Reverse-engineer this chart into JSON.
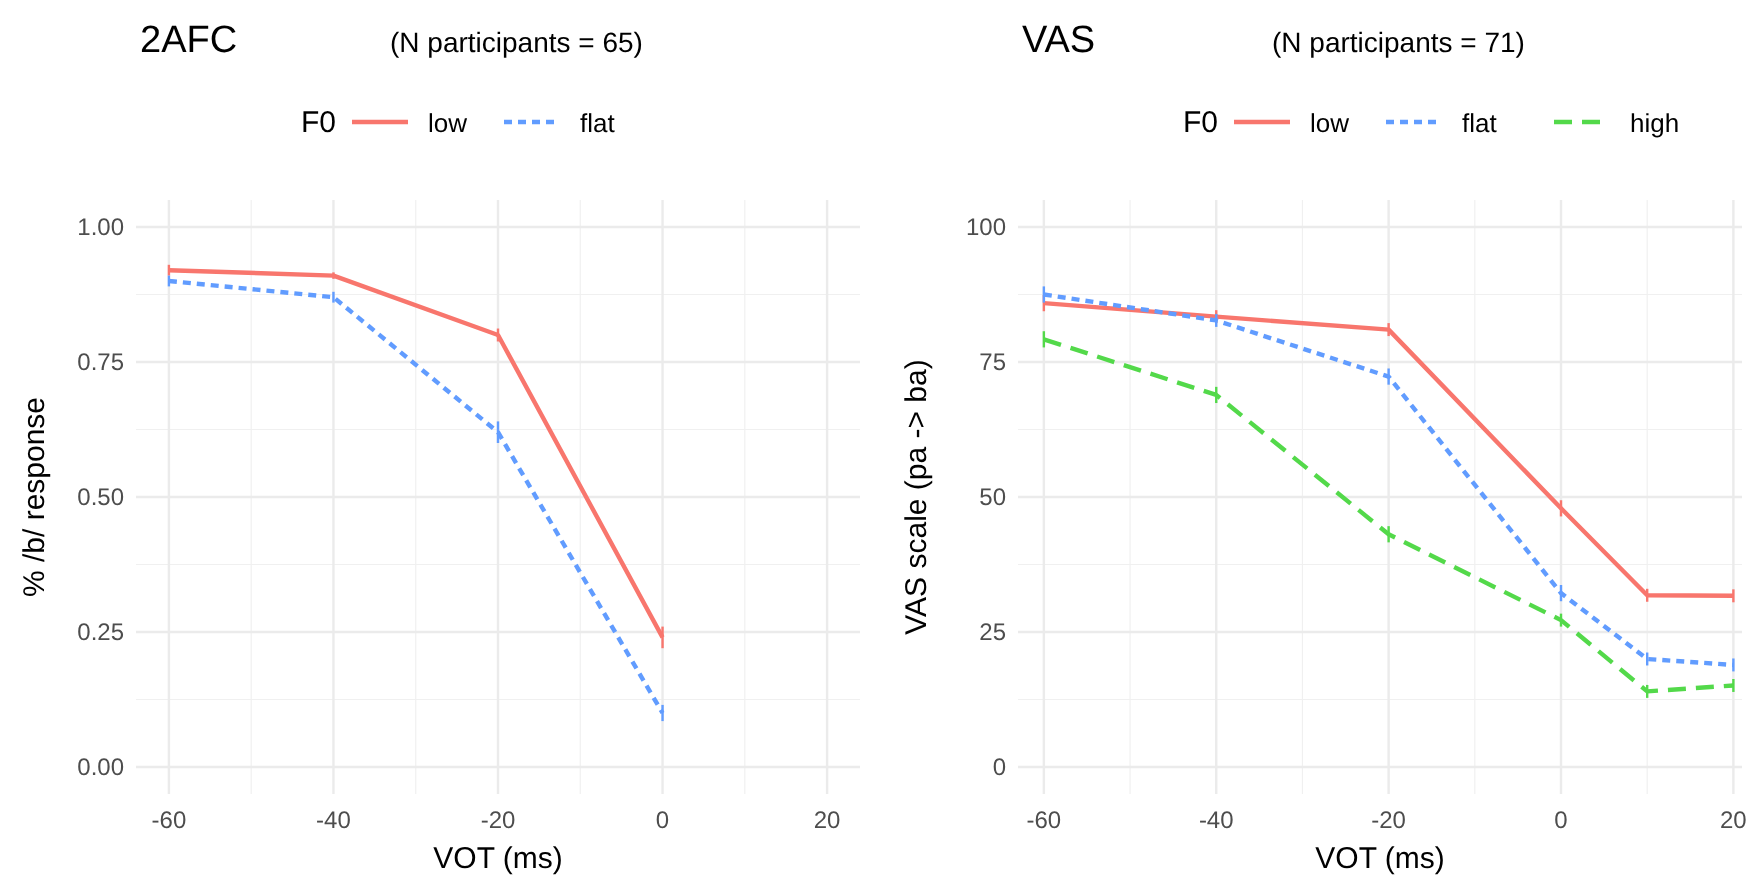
{
  "chart_data": [
    {
      "type": "line",
      "title": "2AFC",
      "subtitle": "(N participants = 65)",
      "xlabel": "VOT (ms)",
      "ylabel": "% /b/ response",
      "legend_title": "F0",
      "legend": "top",
      "grid": true,
      "marker": "none",
      "xlim": [
        -64,
        24
      ],
      "xticks": [
        -60,
        -40,
        -20,
        0,
        20
      ],
      "ylim": [
        -0.05,
        1.05
      ],
      "yticks": [
        {
          "value": 0,
          "label": "0.00"
        },
        {
          "value": 0.25,
          "label": "0.25"
        },
        {
          "value": 0.5,
          "label": "0.50"
        },
        {
          "value": 0.75,
          "label": "0.75"
        },
        {
          "value": 1,
          "label": "1.00"
        }
      ],
      "x": [
        -60,
        -40,
        -20,
        0
      ],
      "series": [
        {
          "name": "low",
          "color": "#f8766d",
          "line_style": "solid",
          "values": [
            0.92,
            0.91,
            0.8,
            0.24
          ],
          "errors": [
            0.01,
            0.006,
            0.012,
            0.02
          ]
        },
        {
          "name": "flat",
          "color": "#619cff",
          "line_style": "dotted",
          "values": [
            0.9,
            0.87,
            0.62,
            0.1
          ],
          "errors": [
            0.01,
            0.01,
            0.02,
            0.015
          ]
        }
      ]
    },
    {
      "type": "line",
      "title": "VAS",
      "subtitle": "(N participants = 71)",
      "xlabel": "VOT (ms)",
      "ylabel": "VAS scale (pa -> ba)",
      "legend_title": "F0",
      "legend": "top",
      "grid": true,
      "marker": "none",
      "xlim": [
        -63,
        21
      ],
      "xticks": [
        -60,
        -40,
        -20,
        0,
        20
      ],
      "ylim": [
        -5,
        105
      ],
      "yticks": [
        0,
        25,
        50,
        75,
        100
      ],
      "x": [
        -60,
        -40,
        -20,
        0,
        10,
        20
      ],
      "series": [
        {
          "name": "low",
          "color": "#f8766d",
          "line_style": "solid",
          "values": [
            85.9,
            83.4,
            81.0,
            47.9,
            31.8,
            31.7
          ],
          "errors": [
            1.5,
            1.2,
            1.2,
            1.5,
            1.2,
            1.2
          ]
        },
        {
          "name": "flat",
          "color": "#619cff",
          "line_style": "dotted",
          "values": [
            87.5,
            82.7,
            72.3,
            32.2,
            20.0,
            18.9
          ],
          "errors": [
            1.5,
            1.2,
            1.5,
            1.5,
            1.2,
            1.2
          ]
        },
        {
          "name": "high",
          "color": "#53d94a",
          "line_style": "dashed",
          "values": [
            79.2,
            68.9,
            43.1,
            27.2,
            14.0,
            15.1
          ],
          "errors": [
            1.5,
            1.5,
            1.5,
            1.2,
            1.2,
            1.2
          ]
        }
      ]
    }
  ]
}
